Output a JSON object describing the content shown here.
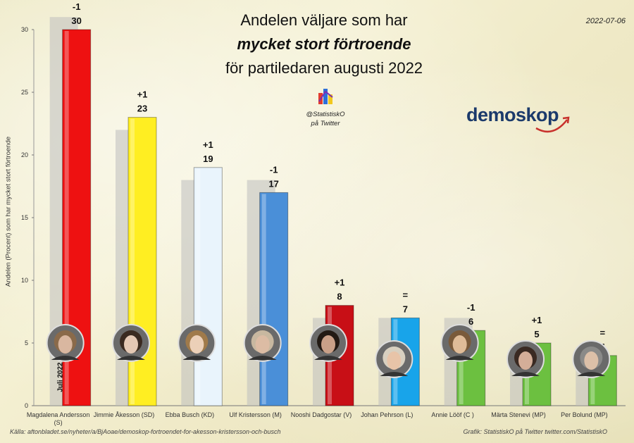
{
  "header": {
    "title_line1": "Andelen väljare som har",
    "title_line2": "mycket stort förtroende",
    "title_line3": "för partiledaren augusti 2022",
    "date": "2022-07-06"
  },
  "branding": {
    "statistisko_handle": "@StatistiskO",
    "statistisko_platform": "på Twitter",
    "demoskop_logo": "demoskop",
    "demoskop_color": "#1b3a6b"
  },
  "footer": {
    "source": "Källa: aftonbladet.se/nyheter/a/BjAoae/demoskop-fortroendet-for-akesson-kristersson-och-busch",
    "credit": "Grafik: StatistiskO på Twitter twitter.com/StatistiskO"
  },
  "chart_data": {
    "type": "bar",
    "ylabel": "Andelen (Procent) som har mycket  stort förtroende",
    "ylim": [
      0,
      30
    ],
    "yticks": [
      0,
      5,
      10,
      15,
      20,
      25,
      30
    ],
    "grid": false,
    "previous_series_label": "Juli 2022",
    "categories": [
      "Magdalena Andersson (S)",
      "Jimmie Åkesson (SD)",
      "Ebba Busch (KD)",
      "Ulf Kristersson (M)",
      "Nooshi Dadgostar (V)",
      "Johan Pehrson (L)",
      "Annie Lööf (C )",
      "Märta Stenevi (MP)",
      "Per Bolund (MP)"
    ],
    "series": [
      {
        "name": "Juli 2022",
        "values": [
          31,
          22,
          18,
          18,
          7,
          7,
          7,
          4,
          4
        ]
      },
      {
        "values": [
          30,
          23,
          19,
          17,
          8,
          7,
          6,
          5,
          4
        ]
      }
    ],
    "changes": [
      "-1",
      "+1",
      "+1",
      "-1",
      "+1",
      "=",
      "-1",
      "+1",
      "="
    ],
    "colors": [
      "#ee1111",
      "#ffee22",
      "#e9f4fc",
      "#4a8fd8",
      "#c80f16",
      "#18a4ea",
      "#6cc040",
      "#6cc040",
      "#6cc040"
    ]
  }
}
